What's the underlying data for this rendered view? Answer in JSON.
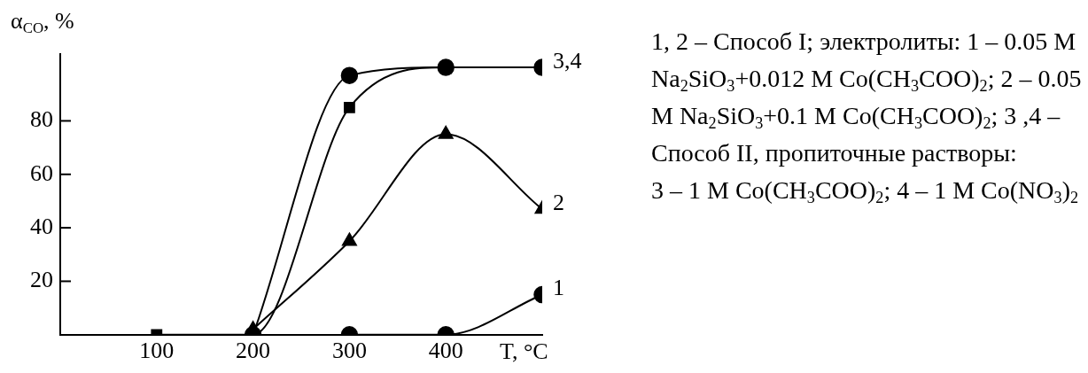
{
  "chart_data": {
    "type": "line",
    "xlabel": "T, °C",
    "ylabel": "α$_{CO}$, %",
    "xlim": [
      0,
      500
    ],
    "xticks": [
      100,
      200,
      300,
      400
    ],
    "ylim": [
      0,
      105
    ],
    "yticks": [
      20,
      40,
      60,
      80
    ],
    "grid": false,
    "legend": false,
    "line_style": "solid",
    "series": [
      {
        "name": "1",
        "color": "#000000",
        "marker": "circle",
        "x": [
          300,
          400,
          500
        ],
        "values": [
          0,
          0,
          15
        ]
      },
      {
        "name": "2",
        "color": "#000000",
        "marker": "triangle",
        "x": [
          200,
          300,
          400,
          500
        ],
        "values": [
          2,
          35,
          75,
          47
        ]
      },
      {
        "name": "3,4",
        "color": "#000000",
        "marker": "circle",
        "x": [
          200,
          300,
          400,
          500
        ],
        "values": [
          0,
          97,
          100,
          100
        ]
      },
      {
        "color": "#000000",
        "marker": "square",
        "x": [
          100,
          200,
          300,
          400,
          500
        ],
        "values": [
          0,
          0,
          85,
          100,
          100
        ]
      }
    ],
    "annotations": [
      "1, 2 – Способ I; электролиты: 1 – 0.05 M Na$_{2}$SiO$_{3}$+0.012 M Co(CH$_{3}$COO)$_{2}$; 2 – 0.05 M Na$_{2}$SiO$_{3}$+0.1 M Co(CH$_{3}$COO)$_{2}$; 3 ,4 – Способ II, пропиточные растворы:\n3 – 1 M Co(CH$_{3}$COO)$_{2}$; 4 – 1 M Co(NO$_{3}$)$_{2}$"
    ]
  }
}
